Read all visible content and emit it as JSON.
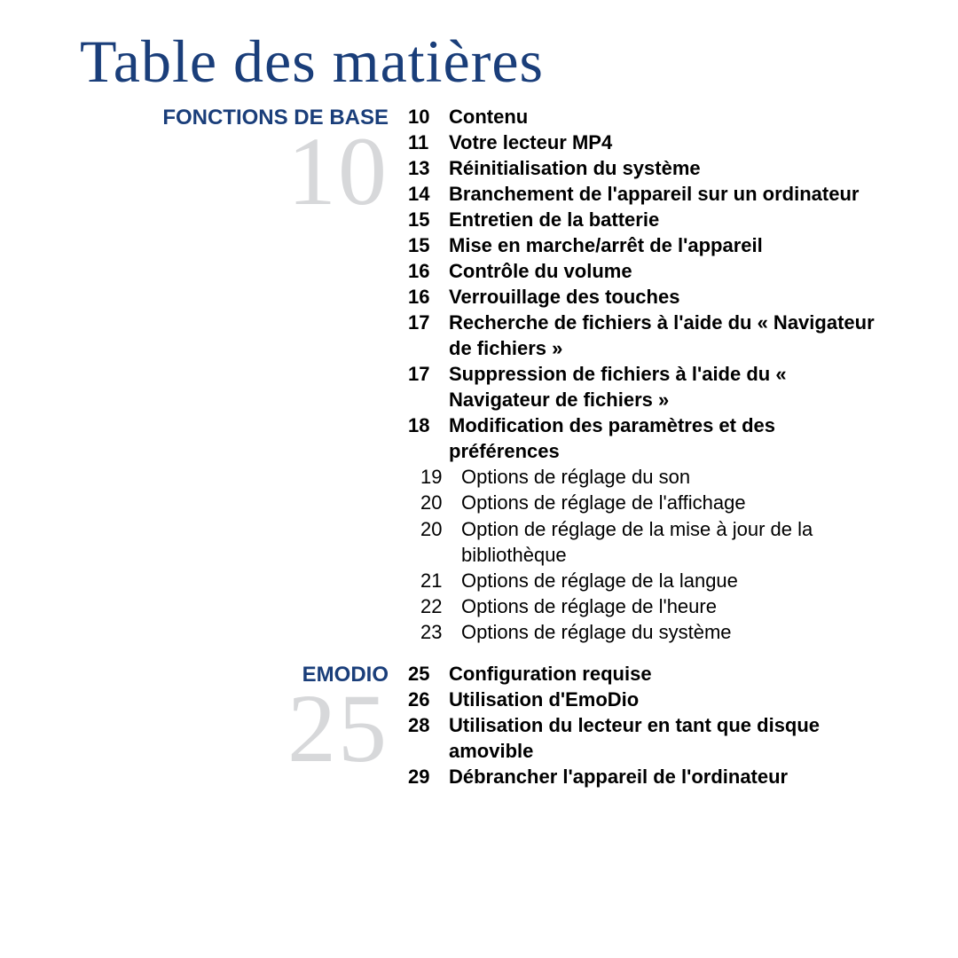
{
  "title": "Table des matières",
  "title_color": "#1a3e7a",
  "title_fontsize": 68,
  "section_heading_color": "#1a3e7a",
  "section_heading_fontsize": 24,
  "big_number_color": "#d7d8da",
  "big_number_fontsize": 110,
  "body_color": "#000000",
  "body_fontsize": 22,
  "line_height": 1.32,
  "sections": [
    {
      "heading": "FONCTIONS DE BASE",
      "big_number": "10",
      "entries": [
        {
          "page": "10",
          "text": "Contenu",
          "bold": true
        },
        {
          "page": "11",
          "text": "Votre lecteur MP4",
          "bold": true
        },
        {
          "page": "13",
          "text": "Réinitialisation du système",
          "bold": true
        },
        {
          "page": "14",
          "text": "Branchement de l'appareil sur un ordinateur",
          "bold": true
        },
        {
          "page": "15",
          "text": "Entretien de la batterie",
          "bold": true
        },
        {
          "page": "15",
          "text": "Mise en marche/arrêt de l'appareil",
          "bold": true
        },
        {
          "page": "16",
          "text": "Contrôle du volume",
          "bold": true
        },
        {
          "page": "16",
          "text": "Verrouillage des touches",
          "bold": true
        },
        {
          "page": "17",
          "text": "Recherche de fichiers à l'aide du « Navigateur de fichiers »",
          "bold": true
        },
        {
          "page": "17",
          "text": "Suppression de fichiers à l'aide du « Navigateur de fichiers »",
          "bold": true
        },
        {
          "page": "18",
          "text": "Modification des paramètres et des préférences",
          "bold": true
        },
        {
          "page": "19",
          "text": "Options de réglage du son",
          "bold": false,
          "indent": true
        },
        {
          "page": "20",
          "text": "Options de réglage de l'affichage",
          "bold": false,
          "indent": true
        },
        {
          "page": "20",
          "text": "Option de réglage de la mise à jour de la bibliothèque",
          "bold": false,
          "indent": true
        },
        {
          "page": "21",
          "text": "Options de réglage de la langue",
          "bold": false,
          "indent": true
        },
        {
          "page": "22",
          "text": "Options de réglage de l'heure",
          "bold": false,
          "indent": true
        },
        {
          "page": "23",
          "text": "Options de réglage du système",
          "bold": false,
          "indent": true
        }
      ]
    },
    {
      "heading": "EMODIO",
      "big_number": "25",
      "entries": [
        {
          "page": "25",
          "text": "Configuration requise",
          "bold": true
        },
        {
          "page": "26",
          "text": "Utilisation d'EmoDio",
          "bold": true
        },
        {
          "page": "28",
          "text": "Utilisation du lecteur en tant que disque amovible",
          "bold": true
        },
        {
          "page": "29",
          "text": "Débrancher l'appareil de l'ordinateur",
          "bold": true
        }
      ]
    }
  ]
}
